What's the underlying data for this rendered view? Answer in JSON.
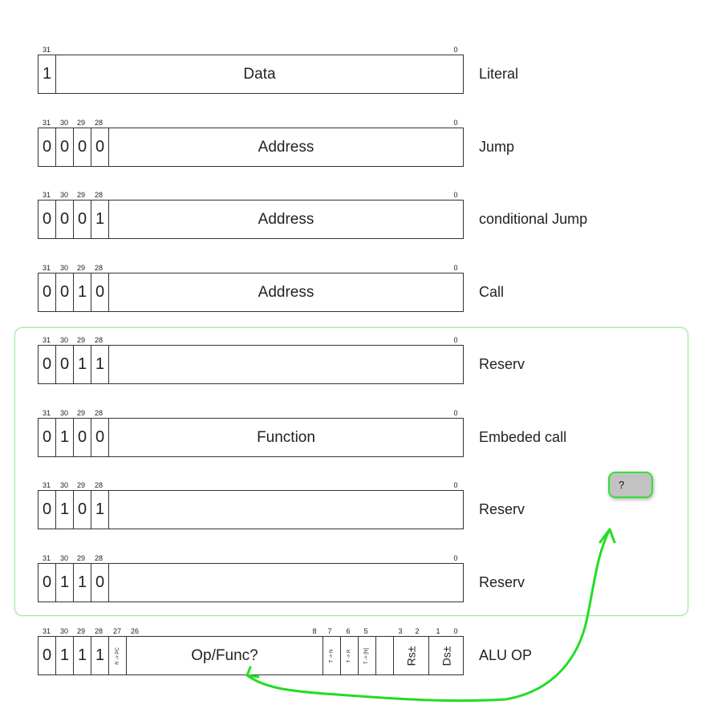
{
  "rows": [
    {
      "ticks": [
        "31",
        "0"
      ],
      "bits": [
        "1"
      ],
      "field": "Data",
      "name": "Literal"
    },
    {
      "ticks": [
        "31",
        "30",
        "29",
        "28",
        "0"
      ],
      "bits": [
        "0",
        "0",
        "0",
        "0"
      ],
      "field": "Address",
      "name": "Jump"
    },
    {
      "ticks": [
        "31",
        "30",
        "29",
        "28",
        "0"
      ],
      "bits": [
        "0",
        "0",
        "0",
        "1"
      ],
      "field": "Address",
      "name": "conditional Jump"
    },
    {
      "ticks": [
        "31",
        "30",
        "29",
        "28",
        "0"
      ],
      "bits": [
        "0",
        "0",
        "1",
        "0"
      ],
      "field": "Address",
      "name": "Call"
    },
    {
      "ticks": [
        "31",
        "30",
        "29",
        "28",
        "0"
      ],
      "bits": [
        "0",
        "0",
        "1",
        "1"
      ],
      "field": "",
      "name": "Reserv"
    },
    {
      "ticks": [
        "31",
        "30",
        "29",
        "28",
        "0"
      ],
      "bits": [
        "0",
        "1",
        "0",
        "0"
      ],
      "field": "Function",
      "name": "Embeded call"
    },
    {
      "ticks": [
        "31",
        "30",
        "29",
        "28",
        "0"
      ],
      "bits": [
        "0",
        "1",
        "0",
        "1"
      ],
      "field": "",
      "name": "Reserv"
    },
    {
      "ticks": [
        "31",
        "30",
        "29",
        "28",
        "0"
      ],
      "bits": [
        "0",
        "1",
        "1",
        "0"
      ],
      "field": "",
      "name": "Reserv"
    }
  ],
  "alu": {
    "ticks": [
      "31",
      "30",
      "29",
      "28",
      "27",
      "26",
      "8",
      "7",
      "6",
      "5",
      "3",
      "2",
      "1",
      "0"
    ],
    "bits": [
      "0",
      "1",
      "1",
      "1"
    ],
    "r_to_pc": "R -> PC",
    "field": "Op/Func?",
    "t_to_n": "T -> N",
    "t_to_r": "T -> R",
    "t_to_n_mem": "T -> [N]",
    "rs": "Rs±",
    "ds": "Ds±",
    "name": "ALU OP"
  },
  "annotation": {
    "label": "?",
    "color": "#22dd22"
  }
}
